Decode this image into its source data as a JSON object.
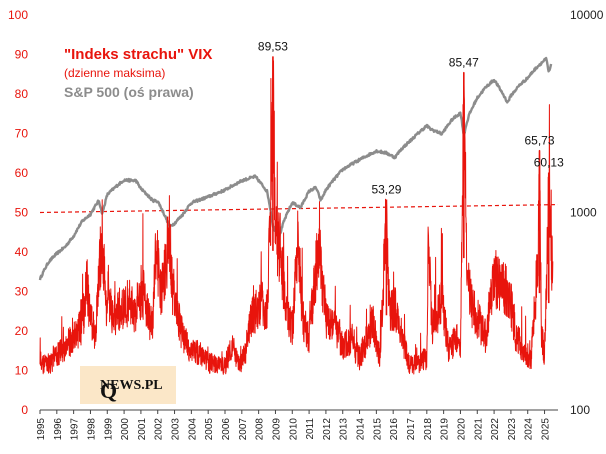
{
  "chart_data": {
    "type": "line",
    "title": "",
    "xlabel": "",
    "ylabel": "",
    "x_ticks": [
      "1995",
      "1996",
      "1997",
      "1998",
      "1999",
      "2000",
      "2001",
      "2002",
      "2003",
      "2004",
      "2005",
      "2006",
      "2007",
      "2008",
      "2009",
      "2010",
      "2011",
      "2012",
      "2013",
      "2014",
      "2015",
      "2016",
      "2017",
      "2018",
      "2019",
      "2020",
      "2021",
      "2022",
      "2023",
      "2024",
      "2025"
    ],
    "y_left_ticks": [
      "0",
      "10",
      "20",
      "30",
      "40",
      "50",
      "60",
      "70",
      "80",
      "90",
      "100"
    ],
    "y_right_ticks": [
      "100",
      "1000",
      "10000"
    ],
    "ylim_left": [
      0,
      100
    ],
    "ylim_right": [
      100,
      10000
    ],
    "y_right_scale": "log",
    "xlim": [
      1995,
      2025.8
    ],
    "legend": {
      "title": "\"Indeks strachu\" VIX",
      "subtitle": "(dzienne maksima)",
      "sp500": "S&P 500 (oś prawa)"
    },
    "series": [
      {
        "name": "\"Indeks strachu\" VIX",
        "axis": "left",
        "color": "#e8140c",
        "x": [
          1995.0,
          1995.5,
          1996.0,
          1996.5,
          1997.0,
          1997.5,
          1997.8,
          1998.0,
          1998.3,
          1998.6,
          1998.7,
          1998.9,
          1999.2,
          1999.5,
          1999.8,
          2000.0,
          2000.3,
          2000.6,
          2000.9,
          2001.2,
          2001.5,
          2001.7,
          2001.9,
          2002.2,
          2002.5,
          2002.6,
          2002.8,
          2003.0,
          2003.2,
          2003.5,
          2003.8,
          2004.2,
          2004.6,
          2005.0,
          2005.5,
          2006.0,
          2006.4,
          2006.8,
          2007.2,
          2007.6,
          2007.9,
          2008.2,
          2008.5,
          2008.75,
          2008.85,
          2009.0,
          2009.3,
          2009.6,
          2010.0,
          2010.35,
          2010.6,
          2011.0,
          2011.6,
          2011.7,
          2012.0,
          2012.5,
          2013.0,
          2013.5,
          2014.0,
          2014.8,
          2015.2,
          2015.6,
          2015.8,
          2016.1,
          2016.5,
          2017.0,
          2017.5,
          2018.0,
          2018.1,
          2018.3,
          2018.9,
          2019.3,
          2019.8,
          2020.0,
          2020.2,
          2020.4,
          2020.7,
          2021.0,
          2021.5,
          2022.0,
          2022.5,
          2022.9,
          2023.3,
          2023.8,
          2024.2,
          2024.6,
          2024.7,
          2024.8,
          2025.0,
          2025.25,
          2025.5
        ],
        "values": [
          13,
          12,
          15,
          17,
          20,
          23,
          34,
          24,
          21,
          42,
          48,
          30,
          27,
          25,
          28,
          27,
          30,
          26,
          30,
          32,
          24,
          23,
          45,
          30,
          40,
          45,
          36,
          30,
          25,
          20,
          17,
          16,
          15,
          13,
          12,
          12,
          18,
          12,
          15,
          26,
          27,
          30,
          26,
          60,
          89.53,
          50,
          42,
          28,
          22,
          46,
          25,
          19,
          48,
          40,
          25,
          24,
          17,
          19,
          14,
          24,
          14,
          53.29,
          26,
          28,
          20,
          12,
          13,
          14,
          50,
          22,
          30,
          16,
          20,
          15,
          85.47,
          35,
          28,
          25,
          20,
          35,
          34,
          32,
          20,
          16,
          14,
          40,
          65.73,
          22,
          15,
          60.13,
          35
        ]
      },
      {
        "name": "S&P 500",
        "axis": "right",
        "color": "#8c8c8c",
        "x": [
          1995.0,
          1995.5,
          1996.0,
          1996.5,
          1997.0,
          1997.5,
          1998.0,
          1998.5,
          1998.7,
          1999.0,
          1999.5,
          2000.0,
          2000.7,
          2001.0,
          2001.7,
          2002.0,
          2002.7,
          2003.0,
          2003.5,
          2004.0,
          2005.0,
          2006.0,
          2007.0,
          2007.8,
          2008.5,
          2008.85,
          2009.2,
          2009.5,
          2010.0,
          2010.5,
          2011.0,
          2011.4,
          2011.7,
          2012.0,
          2013.0,
          2014.0,
          2015.0,
          2015.6,
          2016.1,
          2016.5,
          2017.0,
          2018.0,
          2018.2,
          2018.9,
          2019.5,
          2020.0,
          2020.2,
          2020.5,
          2021.0,
          2021.5,
          2022.0,
          2022.8,
          2023.0,
          2023.5,
          2024.0,
          2024.5,
          2025.0,
          2025.1,
          2025.25,
          2025.4
        ],
        "values": [
          460,
          560,
          620,
          670,
          760,
          900,
          980,
          1150,
          980,
          1230,
          1350,
          1460,
          1450,
          1320,
          1150,
          1140,
          850,
          880,
          980,
          1120,
          1200,
          1300,
          1450,
          1520,
          1280,
          850,
          740,
          900,
          1120,
          1060,
          1280,
          1340,
          1150,
          1300,
          1650,
          1850,
          2050,
          2000,
          1900,
          2100,
          2300,
          2750,
          2650,
          2500,
          2950,
          3200,
          2450,
          3100,
          3800,
          4300,
          4700,
          3600,
          3900,
          4400,
          4800,
          5400,
          5900,
          6000,
          5100,
          5600
        ]
      }
    ],
    "reference_line": {
      "axis": "left",
      "style": "dashed",
      "color": "#e8140c",
      "from": [
        1995,
        50
      ],
      "to": [
        2025.8,
        52
      ]
    },
    "annotations": [
      {
        "label": "89,53",
        "x": 2008.85,
        "y": 89.53
      },
      {
        "label": "53,29",
        "x": 2015.6,
        "y": 53.29
      },
      {
        "label": "85,47",
        "x": 2020.2,
        "y": 85.47
      },
      {
        "label": "65,73",
        "x": 2024.7,
        "y": 65.73
      },
      {
        "label": "60,13",
        "x": 2025.25,
        "y": 60.13
      }
    ]
  },
  "logo": {
    "q": "Q",
    "text": "NEWS.PL"
  }
}
